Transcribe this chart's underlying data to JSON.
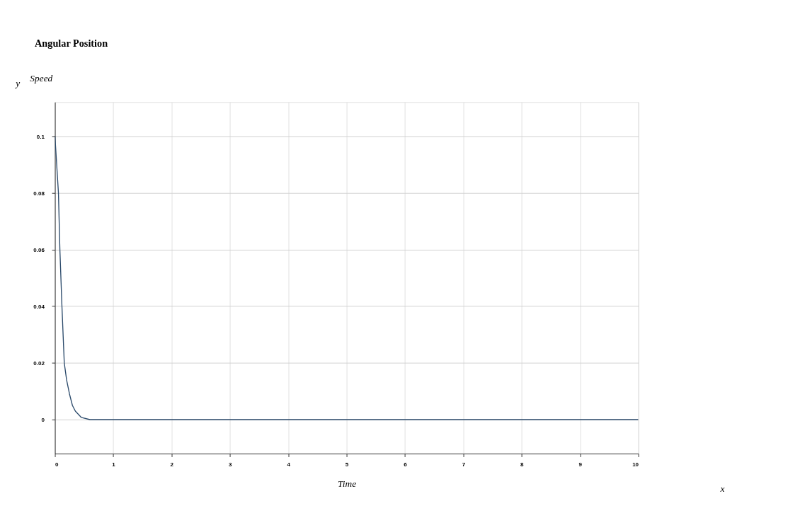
{
  "chart_data": {
    "type": "line",
    "title": "Angular Position",
    "xlabel": "Time",
    "ylabel": "Speed",
    "annotations": [
      "y",
      "x"
    ],
    "x": [
      0,
      0.03,
      0.06,
      0.085,
      0.12,
      0.16,
      0.2,
      0.25,
      0.3,
      0.35,
      0.45,
      0.6,
      1,
      2,
      3,
      4,
      5,
      6,
      7,
      8,
      9,
      10
    ],
    "series": [
      {
        "color": "#2b4a6b",
        "values": [
          0.1,
          0.09,
          0.08,
          0.06,
          0.04,
          0.02,
          0.014,
          0.009,
          0.005,
          0.003,
          0.0008,
          0,
          0,
          0,
          0,
          0,
          0,
          0,
          0,
          0,
          0,
          0
        ]
      }
    ],
    "xlim": [
      0,
      10
    ],
    "xticks": [
      0,
      1,
      2,
      3,
      4,
      5,
      6,
      7,
      8,
      9,
      10
    ],
    "ylim": [
      -0.012,
      0.112
    ],
    "yticks": [
      0,
      0.02,
      0.04,
      0.06,
      0.08,
      0.1
    ],
    "grid": true,
    "marker": "none",
    "line_style": "solid"
  }
}
